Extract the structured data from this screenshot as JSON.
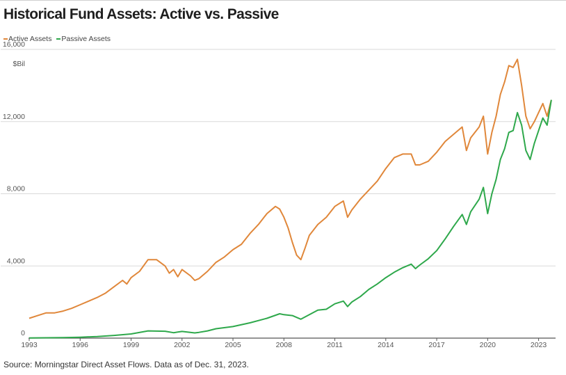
{
  "header": {
    "title": "Historical Fund Assets: Active vs. Passive"
  },
  "footer": {
    "source": "Source: Morningstar Direct Asset Flows. Data as of Dec. 31, 2023."
  },
  "colors": {
    "active": "#e0873a",
    "passive": "#2ea84b",
    "grid": "#d9d9d9",
    "axis": "#555555"
  },
  "chart_data": {
    "type": "line",
    "title": "Historical Fund Assets: Active vs. Passive",
    "ylabel": "$Bil",
    "ylim": [
      0,
      16000
    ],
    "xlim": [
      1993,
      2024
    ],
    "y_ticks": [
      0,
      4000,
      8000,
      12000,
      16000
    ],
    "y_tick_labels": [
      "0",
      "4,000",
      "8,000",
      "12,000",
      "16,000"
    ],
    "x_ticks": [
      1993,
      1996,
      1999,
      2002,
      2005,
      2008,
      2011,
      2014,
      2017,
      2020,
      2023
    ],
    "x_tick_labels": [
      "1993",
      "1996",
      "1999",
      "2002",
      "2005",
      "2008",
      "2011",
      "2014",
      "2017",
      "2020",
      "2023"
    ],
    "grid": true,
    "legend": "top-left",
    "series": [
      {
        "name": "Active Assets",
        "color": "#e0873a",
        "points": [
          [
            1993.0,
            1100
          ],
          [
            1993.5,
            1250
          ],
          [
            1994.0,
            1400
          ],
          [
            1994.5,
            1400
          ],
          [
            1995.0,
            1500
          ],
          [
            1995.5,
            1650
          ],
          [
            1996.0,
            1850
          ],
          [
            1996.5,
            2050
          ],
          [
            1997.0,
            2250
          ],
          [
            1997.5,
            2500
          ],
          [
            1998.0,
            2850
          ],
          [
            1998.5,
            3200
          ],
          [
            1998.75,
            3000
          ],
          [
            1999.0,
            3350
          ],
          [
            1999.5,
            3700
          ],
          [
            2000.0,
            4350
          ],
          [
            2000.5,
            4350
          ],
          [
            2001.0,
            4000
          ],
          [
            2001.25,
            3600
          ],
          [
            2001.5,
            3800
          ],
          [
            2001.75,
            3400
          ],
          [
            2002.0,
            3800
          ],
          [
            2002.5,
            3450
          ],
          [
            2002.75,
            3200
          ],
          [
            2003.0,
            3300
          ],
          [
            2003.5,
            3700
          ],
          [
            2004.0,
            4200
          ],
          [
            2004.5,
            4500
          ],
          [
            2005.0,
            4900
          ],
          [
            2005.5,
            5200
          ],
          [
            2006.0,
            5800
          ],
          [
            2006.5,
            6300
          ],
          [
            2007.0,
            6900
          ],
          [
            2007.5,
            7300
          ],
          [
            2007.75,
            7150
          ],
          [
            2008.0,
            6700
          ],
          [
            2008.25,
            6100
          ],
          [
            2008.5,
            5300
          ],
          [
            2008.75,
            4600
          ],
          [
            2009.0,
            4350
          ],
          [
            2009.25,
            5000
          ],
          [
            2009.5,
            5700
          ],
          [
            2010.0,
            6300
          ],
          [
            2010.5,
            6700
          ],
          [
            2011.0,
            7300
          ],
          [
            2011.5,
            7600
          ],
          [
            2011.75,
            6700
          ],
          [
            2012.0,
            7100
          ],
          [
            2012.5,
            7700
          ],
          [
            2013.0,
            8200
          ],
          [
            2013.5,
            8700
          ],
          [
            2014.0,
            9400
          ],
          [
            2014.5,
            10000
          ],
          [
            2015.0,
            10200
          ],
          [
            2015.5,
            10200
          ],
          [
            2015.75,
            9600
          ],
          [
            2016.0,
            9600
          ],
          [
            2016.5,
            9800
          ],
          [
            2017.0,
            10300
          ],
          [
            2017.5,
            10900
          ],
          [
            2018.0,
            11300
          ],
          [
            2018.5,
            11700
          ],
          [
            2018.75,
            10400
          ],
          [
            2019.0,
            11100
          ],
          [
            2019.5,
            11700
          ],
          [
            2019.75,
            12300
          ],
          [
            2020.0,
            10200
          ],
          [
            2020.25,
            11400
          ],
          [
            2020.5,
            12300
          ],
          [
            2020.75,
            13500
          ],
          [
            2021.0,
            14200
          ],
          [
            2021.25,
            15100
          ],
          [
            2021.5,
            15000
          ],
          [
            2021.75,
            15450
          ],
          [
            2022.0,
            14000
          ],
          [
            2022.25,
            12300
          ],
          [
            2022.5,
            11600
          ],
          [
            2022.75,
            12000
          ],
          [
            2023.0,
            12500
          ],
          [
            2023.25,
            13000
          ],
          [
            2023.5,
            12300
          ],
          [
            2023.75,
            13200
          ]
        ]
      },
      {
        "name": "Passive Assets",
        "color": "#2ea84b",
        "points": [
          [
            1993.0,
            10
          ],
          [
            1994.0,
            20
          ],
          [
            1995.0,
            30
          ],
          [
            1996.0,
            50
          ],
          [
            1997.0,
            90
          ],
          [
            1998.0,
            150
          ],
          [
            1999.0,
            230
          ],
          [
            2000.0,
            400
          ],
          [
            2001.0,
            380
          ],
          [
            2001.5,
            300
          ],
          [
            2002.0,
            370
          ],
          [
            2002.75,
            290
          ],
          [
            2003.0,
            320
          ],
          [
            2003.5,
            400
          ],
          [
            2004.0,
            520
          ],
          [
            2005.0,
            640
          ],
          [
            2006.0,
            850
          ],
          [
            2007.0,
            1100
          ],
          [
            2007.75,
            1350
          ],
          [
            2008.0,
            1300
          ],
          [
            2008.5,
            1250
          ],
          [
            2009.0,
            1050
          ],
          [
            2009.5,
            1300
          ],
          [
            2010.0,
            1550
          ],
          [
            2010.5,
            1600
          ],
          [
            2011.0,
            1900
          ],
          [
            2011.5,
            2050
          ],
          [
            2011.75,
            1750
          ],
          [
            2012.0,
            2000
          ],
          [
            2012.5,
            2300
          ],
          [
            2013.0,
            2700
          ],
          [
            2013.5,
            3000
          ],
          [
            2014.0,
            3350
          ],
          [
            2014.5,
            3650
          ],
          [
            2015.0,
            3900
          ],
          [
            2015.5,
            4100
          ],
          [
            2015.75,
            3850
          ],
          [
            2016.0,
            4050
          ],
          [
            2016.5,
            4400
          ],
          [
            2017.0,
            4850
          ],
          [
            2017.5,
            5500
          ],
          [
            2018.0,
            6200
          ],
          [
            2018.5,
            6850
          ],
          [
            2018.75,
            6300
          ],
          [
            2019.0,
            7000
          ],
          [
            2019.5,
            7700
          ],
          [
            2019.75,
            8350
          ],
          [
            2020.0,
            6900
          ],
          [
            2020.25,
            8000
          ],
          [
            2020.5,
            8800
          ],
          [
            2020.75,
            9900
          ],
          [
            2021.0,
            10500
          ],
          [
            2021.25,
            11400
          ],
          [
            2021.5,
            11500
          ],
          [
            2021.75,
            12500
          ],
          [
            2022.0,
            11800
          ],
          [
            2022.25,
            10400
          ],
          [
            2022.5,
            9900
          ],
          [
            2022.75,
            10800
          ],
          [
            2023.0,
            11500
          ],
          [
            2023.25,
            12200
          ],
          [
            2023.5,
            11800
          ],
          [
            2023.75,
            13200
          ]
        ]
      }
    ]
  }
}
